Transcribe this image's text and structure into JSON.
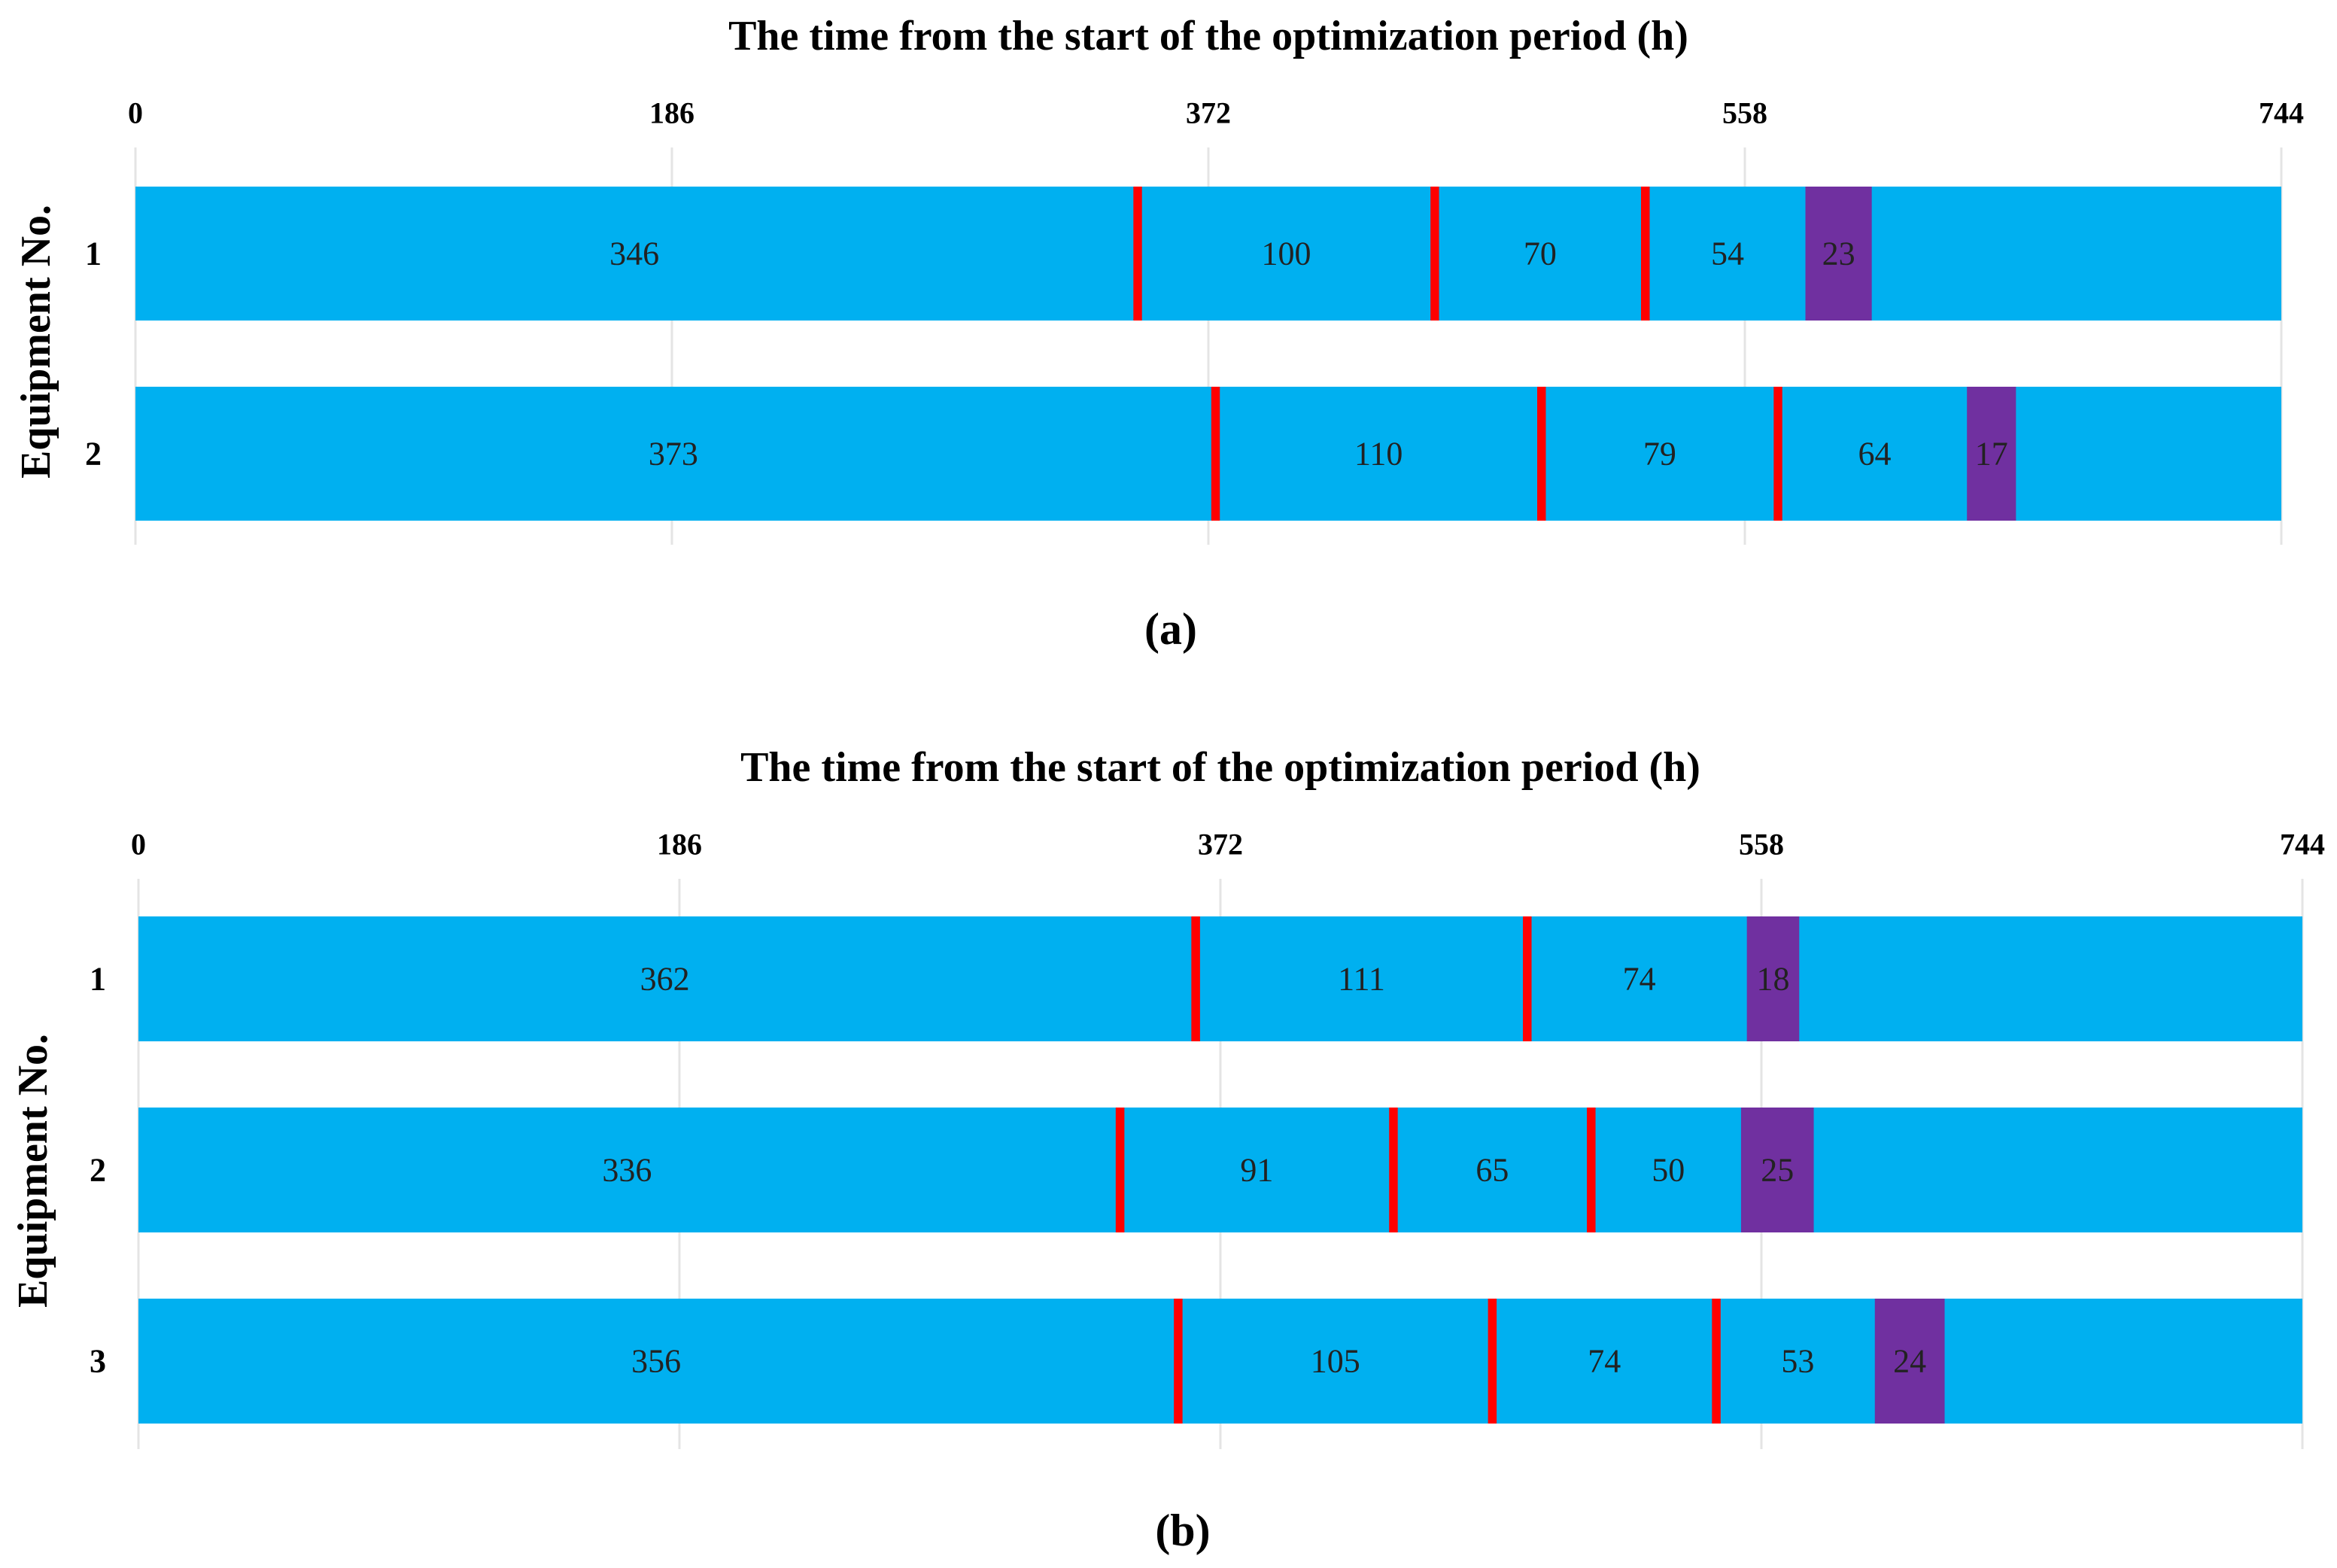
{
  "colors": {
    "operation": "#00b0f0",
    "maintenance": "#ff0000",
    "final": "#7030a0",
    "grid": "#e4e4e4"
  },
  "chart_data": [
    {
      "type": "bar",
      "panel": "(a)",
      "title": "The time from the start of the optimization period (h)",
      "ylabel": "Equipment No.",
      "xlim": [
        0,
        744
      ],
      "xticks": [
        0,
        186,
        372,
        558,
        744
      ],
      "categories": [
        "1",
        "2"
      ],
      "rows": [
        {
          "label": "1",
          "segments": [
            {
              "type": "operation",
              "value": 346
            },
            {
              "type": "maintenance",
              "value": 3
            },
            {
              "type": "operation",
              "value": 100
            },
            {
              "type": "maintenance",
              "value": 3
            },
            {
              "type": "operation",
              "value": 70
            },
            {
              "type": "maintenance",
              "value": 3
            },
            {
              "type": "operation",
              "value": 54
            },
            {
              "type": "final",
              "value": 23
            }
          ]
        },
        {
          "label": "2",
          "segments": [
            {
              "type": "operation",
              "value": 373
            },
            {
              "type": "maintenance",
              "value": 3
            },
            {
              "type": "operation",
              "value": 110
            },
            {
              "type": "maintenance",
              "value": 3
            },
            {
              "type": "operation",
              "value": 79
            },
            {
              "type": "maintenance",
              "value": 3
            },
            {
              "type": "operation",
              "value": 64
            },
            {
              "type": "final",
              "value": 17
            }
          ]
        }
      ]
    },
    {
      "type": "bar",
      "panel": "(b)",
      "title": "The time from the start of the optimization period (h)",
      "ylabel": "Equipment No.",
      "xlim": [
        0,
        744
      ],
      "xticks": [
        0,
        186,
        372,
        558,
        744
      ],
      "categories": [
        "1",
        "2",
        "3"
      ],
      "rows": [
        {
          "label": "1",
          "segments": [
            {
              "type": "operation",
              "value": 362
            },
            {
              "type": "maintenance",
              "value": 3
            },
            {
              "type": "operation",
              "value": 111
            },
            {
              "type": "maintenance",
              "value": 3
            },
            {
              "type": "operation",
              "value": 74
            },
            {
              "type": "final",
              "value": 18
            }
          ]
        },
        {
          "label": "2",
          "segments": [
            {
              "type": "operation",
              "value": 336
            },
            {
              "type": "maintenance",
              "value": 3
            },
            {
              "type": "operation",
              "value": 91
            },
            {
              "type": "maintenance",
              "value": 3
            },
            {
              "type": "operation",
              "value": 65
            },
            {
              "type": "maintenance",
              "value": 3
            },
            {
              "type": "operation",
              "value": 50
            },
            {
              "type": "final",
              "value": 25
            }
          ]
        },
        {
          "label": "3",
          "segments": [
            {
              "type": "operation",
              "value": 356
            },
            {
              "type": "maintenance",
              "value": 3
            },
            {
              "type": "operation",
              "value": 105
            },
            {
              "type": "maintenance",
              "value": 3
            },
            {
              "type": "operation",
              "value": 74
            },
            {
              "type": "maintenance",
              "value": 3
            },
            {
              "type": "operation",
              "value": 53
            },
            {
              "type": "final",
              "value": 24
            }
          ]
        }
      ]
    }
  ]
}
